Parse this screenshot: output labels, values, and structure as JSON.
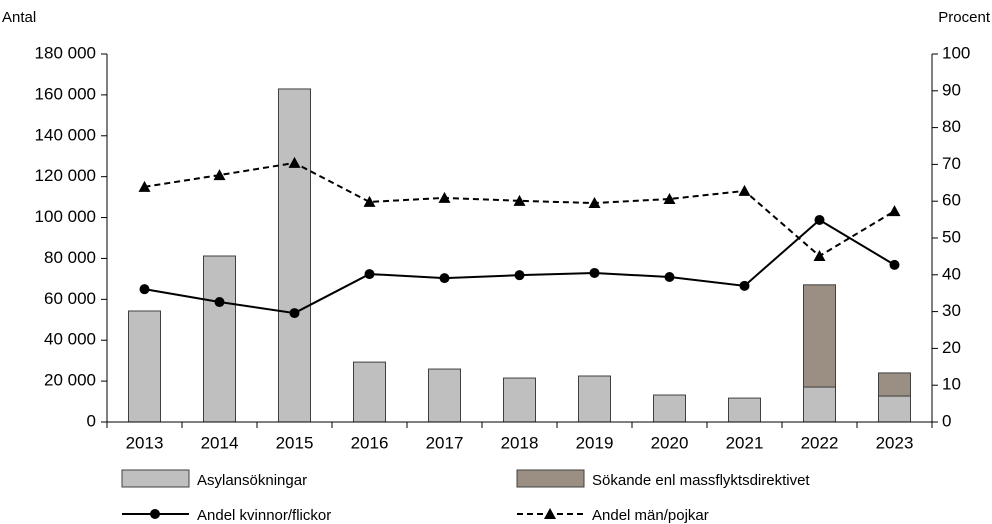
{
  "chart_data": {
    "type": "bar",
    "ylabel": "Antal",
    "y2label": "Procent",
    "categories": [
      "2013",
      "2014",
      "2015",
      "2016",
      "2017",
      "2018",
      "2019",
      "2020",
      "2021",
      "2022",
      "2023"
    ],
    "series": [
      {
        "name": "Asylansökningar",
        "color": "#bfbfbf",
        "type": "bar",
        "values": [
          54300,
          81200,
          162900,
          29300,
          25900,
          21500,
          22500,
          13200,
          11700,
          17100,
          12700
        ]
      },
      {
        "name": "Sökande enl massflyktsdirektivet",
        "color": "#9b8f83",
        "type": "bar",
        "values": [
          null,
          null,
          null,
          null,
          null,
          null,
          null,
          null,
          null,
          50000,
          11300
        ]
      },
      {
        "name": "Andel kvinnor/flickor",
        "color": "#000000",
        "type": "line",
        "axis": "y2",
        "marker": "circle",
        "dashed": false,
        "values": [
          36.1,
          32.6,
          29.6,
          40.2,
          39.1,
          39.9,
          40.5,
          39.4,
          37.0,
          54.9,
          42.7
        ]
      },
      {
        "name": "Andel män/pojkar",
        "color": "#000000",
        "type": "line",
        "axis": "y2",
        "marker": "triangle",
        "dashed": true,
        "values": [
          63.9,
          67.1,
          70.4,
          59.8,
          60.9,
          60.1,
          59.5,
          60.6,
          62.8,
          45.1,
          57.3
        ]
      }
    ],
    "ylim": [
      0,
      180000
    ],
    "yticks": [
      0,
      {
        "value": 20000,
        "label": "20 000"
      },
      {
        "value": 40000,
        "label": "40 000"
      },
      {
        "value": 60000,
        "label": "60 000"
      },
      {
        "value": 80000,
        "label": "80 000"
      },
      {
        "value": 100000,
        "label": "100 000"
      },
      {
        "value": 120000,
        "label": "120 000"
      },
      {
        "value": 140000,
        "label": "140 000"
      },
      {
        "value": 160000,
        "label": "160 000"
      },
      {
        "value": 180000,
        "label": "180 000"
      }
    ],
    "y2lim": [
      0,
      100
    ],
    "y2ticks": [
      0,
      10,
      20,
      30,
      40,
      50,
      60,
      70,
      80,
      90,
      100
    ],
    "grid": false
  }
}
